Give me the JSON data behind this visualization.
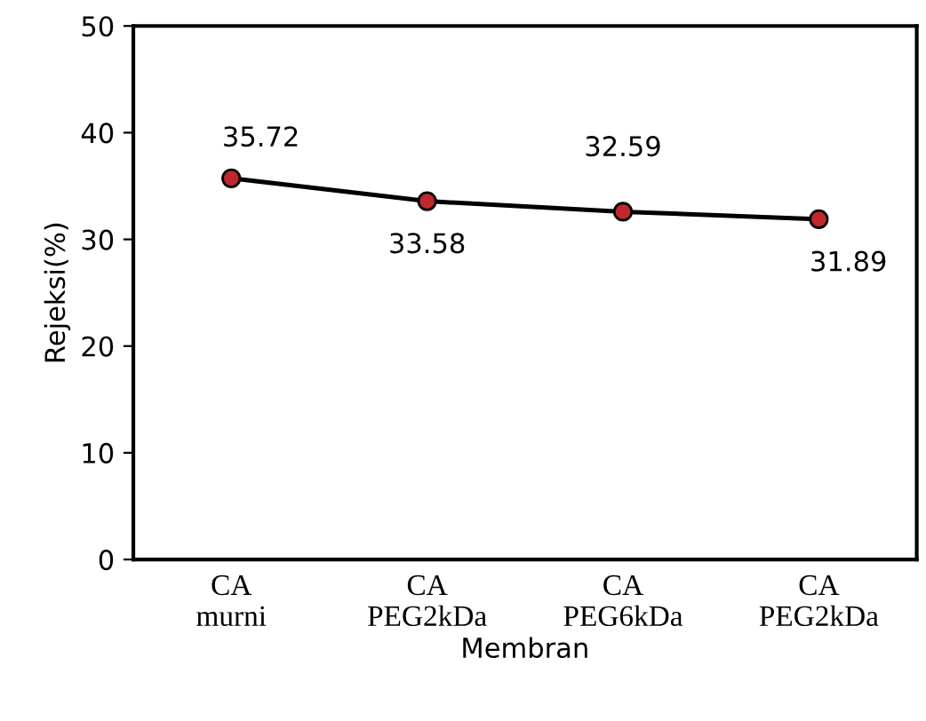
{
  "chart_data": {
    "type": "line",
    "xlabel": "Membran",
    "ylabel": "Rejeksi(%)",
    "categories": [
      "CA\nmurni",
      "CA\nPEG2kDa",
      "CA\nPEG6kDa",
      "CA\nPEG2kDa"
    ],
    "series": [
      {
        "color": "#000000",
        "values": [
          35.72,
          33.58,
          32.59,
          31.89
        ]
      }
    ],
    "ylim": [
      0,
      50
    ],
    "yticks": [
      0,
      10,
      20,
      30,
      40,
      50
    ],
    "grid": false,
    "legend": false,
    "marker": "circle",
    "line_style": "solid",
    "data_labels": true
  }
}
